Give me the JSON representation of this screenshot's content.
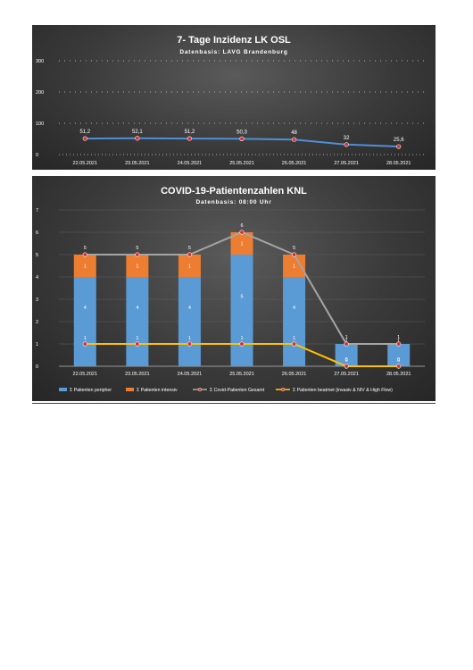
{
  "chart_data": [
    {
      "type": "line",
      "title": "7- Tage Inzidenz LK OSL",
      "subtitle": "Datenbasis: LAVG Brandenburg",
      "categories": [
        "22.05.2021",
        "23.05.2021",
        "24.05.2021",
        "25.05.2021",
        "26.05.2021",
        "27.05.2021",
        "28.05.2021"
      ],
      "series": [
        {
          "values": [
            51.2,
            52.1,
            51.2,
            50.3,
            48,
            32,
            25.6
          ],
          "labels": [
            "51,2",
            "52,1",
            "51,2",
            "50,3",
            "48",
            "32",
            "25,6"
          ],
          "color": "#4f8fd8"
        }
      ],
      "ylim": [
        0,
        300
      ],
      "yticks": [
        "0",
        "100",
        "200",
        "300"
      ],
      "grid": true
    },
    {
      "type": "bar",
      "title": "COVID-19-Patientenzahlen KNL",
      "subtitle": "Datenbasis: 08:00 Uhr",
      "categories": [
        "22.05.2021",
        "23.05.2021",
        "24.05.2021",
        "25.05.2021",
        "26.05.2021",
        "27.05.2021",
        "28.05.2021"
      ],
      "series": [
        {
          "name": "Σ Patienten peripher",
          "type": "bar",
          "color": "#5b9bd5",
          "values": [
            4,
            4,
            4,
            5,
            4,
            1,
            1
          ]
        },
        {
          "name": "Σ Patienten intensiv",
          "type": "bar",
          "color": "#ed7d31",
          "values": [
            1,
            1,
            1,
            1,
            1,
            0,
            0
          ]
        },
        {
          "name": "Σ Covid-Patienten Gesamt",
          "type": "line",
          "color": "#a5a5a5",
          "values": [
            5,
            5,
            5,
            6,
            5,
            1,
            1
          ]
        },
        {
          "name": "Σ Patienten beatmet (invasiv & NIV & High Flow)",
          "type": "line",
          "color": "#ffc000",
          "values": [
            1,
            1,
            1,
            1,
            1,
            0,
            0
          ]
        }
      ],
      "ylim": [
        0,
        7
      ],
      "yticks": [
        "0",
        "1",
        "2",
        "3",
        "4",
        "5",
        "6",
        "7"
      ],
      "legend": "bottom"
    }
  ]
}
